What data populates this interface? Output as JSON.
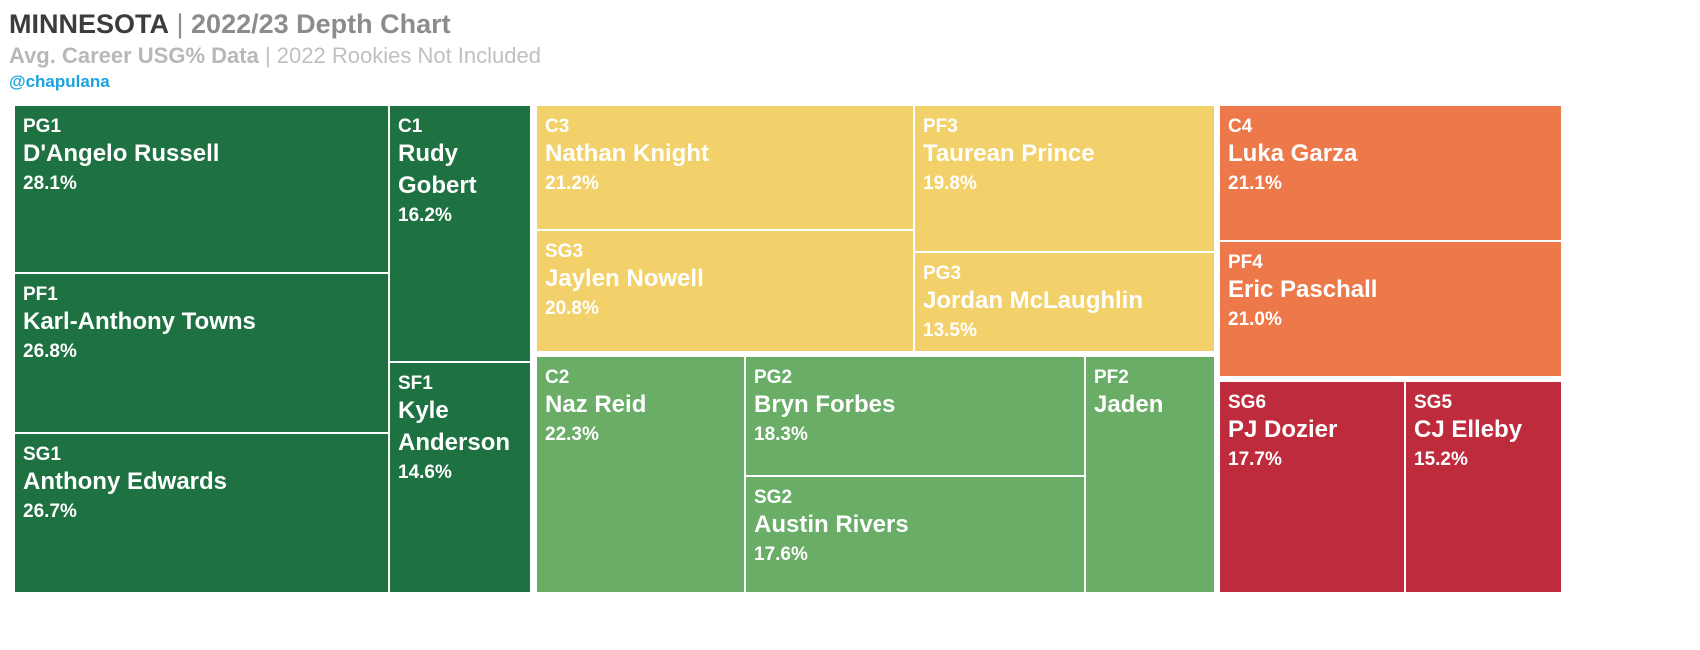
{
  "header": {
    "team": "MINNESOTA",
    "separator": " | ",
    "title": "2022/23 Depth Chart",
    "subtitle_main": "Avg. Career USG% Data",
    "subtitle_sep": " | ",
    "subtitle_note": "2022 Rookies Not Included",
    "handle": "@chapulana"
  },
  "colors": {
    "group1": "#1e7140",
    "group2": "#f2d06a",
    "group3": "#69ad66",
    "group4": "#ed7849",
    "group5": "#be2b3d",
    "tile_text": "#ffffff",
    "title_dark": "#3c3c3c",
    "title_gray": "#8c8c8c",
    "subtitle_gray": "#b8b8b8",
    "handle_blue": "#1aa3e0"
  },
  "chart_data": {
    "type": "treemap",
    "value_label": "Avg. Career USG%",
    "tiles": [
      {
        "position": "PG1",
        "player": "D'Angelo Russell",
        "usg_label": "28.1%",
        "usg": 28.1,
        "group": "group1"
      },
      {
        "position": "PF1",
        "player": "Karl-Anthony Towns",
        "usg_label": "26.8%",
        "usg": 26.8,
        "group": "group1"
      },
      {
        "position": "SG1",
        "player": "Anthony Edwards",
        "usg_label": "26.7%",
        "usg": 26.7,
        "group": "group1"
      },
      {
        "position": "C1",
        "player": "Rudy Gobert",
        "usg_label": "16.2%",
        "usg": 16.2,
        "group": "group1"
      },
      {
        "position": "SF1",
        "player": "Kyle Anderson",
        "usg_label": "14.6%",
        "usg": 14.6,
        "group": "group1"
      },
      {
        "position": "C3",
        "player": "Nathan Knight",
        "usg_label": "21.2%",
        "usg": 21.2,
        "group": "group2"
      },
      {
        "position": "SG3",
        "player": "Jaylen Nowell",
        "usg_label": "20.8%",
        "usg": 20.8,
        "group": "group2"
      },
      {
        "position": "PF3",
        "player": "Taurean Prince",
        "usg_label": "19.8%",
        "usg": 19.8,
        "group": "group2"
      },
      {
        "position": "PG3",
        "player": "Jordan McLaughlin",
        "usg_label": "13.5%",
        "usg": 13.5,
        "group": "group2"
      },
      {
        "position": "C2",
        "player": "Naz Reid",
        "usg_label": "22.3%",
        "usg": 22.3,
        "group": "group3"
      },
      {
        "position": "PG2",
        "player": "Bryn Forbes",
        "usg_label": "18.3%",
        "usg": 18.3,
        "group": "group3"
      },
      {
        "position": "SG2",
        "player": "Austin Rivers",
        "usg_label": "17.6%",
        "usg": 17.6,
        "group": "group3"
      },
      {
        "position": "PF2",
        "player": "Jaden",
        "usg_label": "",
        "usg": null,
        "group": "group3"
      },
      {
        "position": "C4",
        "player": "Luka Garza",
        "usg_label": "21.1%",
        "usg": 21.1,
        "group": "group4"
      },
      {
        "position": "PF4",
        "player": "Eric Paschall",
        "usg_label": "21.0%",
        "usg": 21.0,
        "group": "group4"
      },
      {
        "position": "SG6",
        "player": "PJ Dozier",
        "usg_label": "17.7%",
        "usg": 17.7,
        "group": "group5"
      },
      {
        "position": "SG5",
        "player": "CJ Elleby",
        "usg_label": "15.2%",
        "usg": 15.2,
        "group": "group5"
      }
    ]
  }
}
